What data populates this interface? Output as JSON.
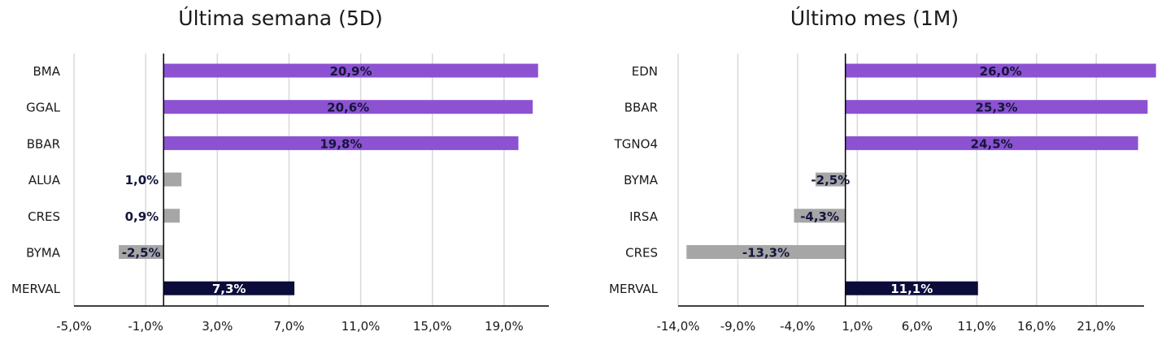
{
  "charts": [
    {
      "type": "bar",
      "orientation": "horizontal",
      "title": "Última semana (5D)",
      "categories": [
        "BMA",
        "GGAL",
        "BBAR",
        "ALUA",
        "CRES",
        "BYMA",
        "MERVAL"
      ],
      "values": [
        20.9,
        20.6,
        19.8,
        1.0,
        0.9,
        -2.5,
        7.3
      ],
      "value_labels": [
        "20,9%",
        "20,6%",
        "19,8%",
        "1,0%",
        "0,9%",
        "-2,5%",
        "7,3%"
      ],
      "bar_kinds": [
        "top",
        "top",
        "top",
        "other",
        "other",
        "other",
        "index"
      ],
      "x_ticks": [
        -5,
        -1,
        3,
        7,
        11,
        15,
        19
      ],
      "x_tick_labels": [
        "-5,0%",
        "-1,0%",
        "3,0%",
        "7,0%",
        "11,0%",
        "15,0%",
        "19,0%"
      ],
      "xlim": [
        -5,
        21.5
      ],
      "grid": true,
      "colors": {
        "top": "#8c52d1",
        "other": "#a6a6a6",
        "index": "#0b0c3a",
        "grid": "#d9d9d9",
        "axis": "#000000"
      }
    },
    {
      "type": "bar",
      "orientation": "horizontal",
      "title": "Último mes (1M)",
      "categories": [
        "EDN",
        "BBAR",
        "TGNO4",
        "BYMA",
        "IRSA",
        "CRES",
        "MERVAL"
      ],
      "values": [
        26.0,
        25.3,
        24.5,
        -2.5,
        -4.3,
        -13.3,
        11.1
      ],
      "value_labels": [
        "26,0%",
        "25,3%",
        "24,5%",
        "-2,5%",
        "-4,3%",
        "-13,3%",
        "11,1%"
      ],
      "bar_kinds": [
        "top",
        "top",
        "top",
        "other",
        "other",
        "other",
        "index"
      ],
      "x_ticks": [
        -14,
        -9,
        -4,
        1,
        6,
        11,
        16,
        21
      ],
      "x_tick_labels": [
        "-14,0%",
        "-9,0%",
        "-4,0%",
        "1,0%",
        "6,0%",
        "11,0%",
        "16,0%",
        "21,0%"
      ],
      "xlim": [
        -14,
        25
      ],
      "grid": true,
      "colors": {
        "top": "#8c52d1",
        "other": "#a6a6a6",
        "index": "#0b0c3a",
        "grid": "#d9d9d9",
        "axis": "#000000"
      }
    }
  ]
}
